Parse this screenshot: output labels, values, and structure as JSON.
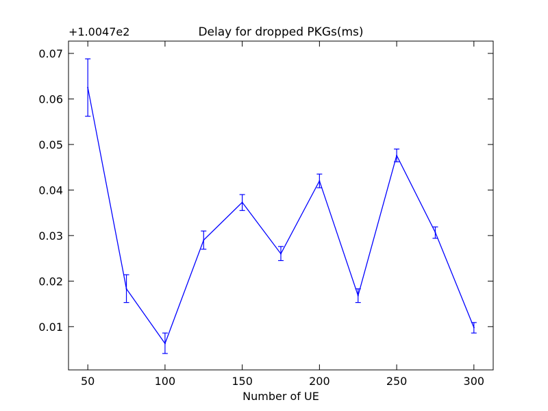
{
  "chart_data": {
    "type": "line",
    "title": "Delay for dropped PKGs(ms)",
    "xlabel": "Number of UE",
    "ylabel": "",
    "offset_text": "+1.0047e2",
    "x_ticks": [
      50,
      100,
      150,
      200,
      250,
      300
    ],
    "y_ticks": [
      0.01,
      0.02,
      0.03,
      0.04,
      0.05,
      0.06,
      0.07
    ],
    "y_tick_labels": [
      "0.01",
      "0.02",
      "0.03",
      "0.04",
      "0.05",
      "0.06",
      "0.07"
    ],
    "xlim": [
      37.5,
      312.5
    ],
    "ylim": [
      0.0005,
      0.0727
    ],
    "series": [
      {
        "name": "delay",
        "color": "#0000ff",
        "x": [
          50,
          75,
          100,
          125,
          150,
          175,
          200,
          225,
          250,
          275,
          300
        ],
        "values": [
          0.0625,
          0.0183,
          0.0063,
          0.029,
          0.0373,
          0.026,
          0.042,
          0.0168,
          0.0476,
          0.0307,
          0.0098
        ],
        "err_low": [
          0.0562,
          0.0153,
          0.0041,
          0.027,
          0.0355,
          0.0245,
          0.0405,
          0.0153,
          0.0462,
          0.0294,
          0.0086
        ],
        "err_high": [
          0.0688,
          0.0214,
          0.0086,
          0.031,
          0.039,
          0.0276,
          0.0435,
          0.0183,
          0.049,
          0.0319,
          0.0109
        ]
      }
    ]
  }
}
